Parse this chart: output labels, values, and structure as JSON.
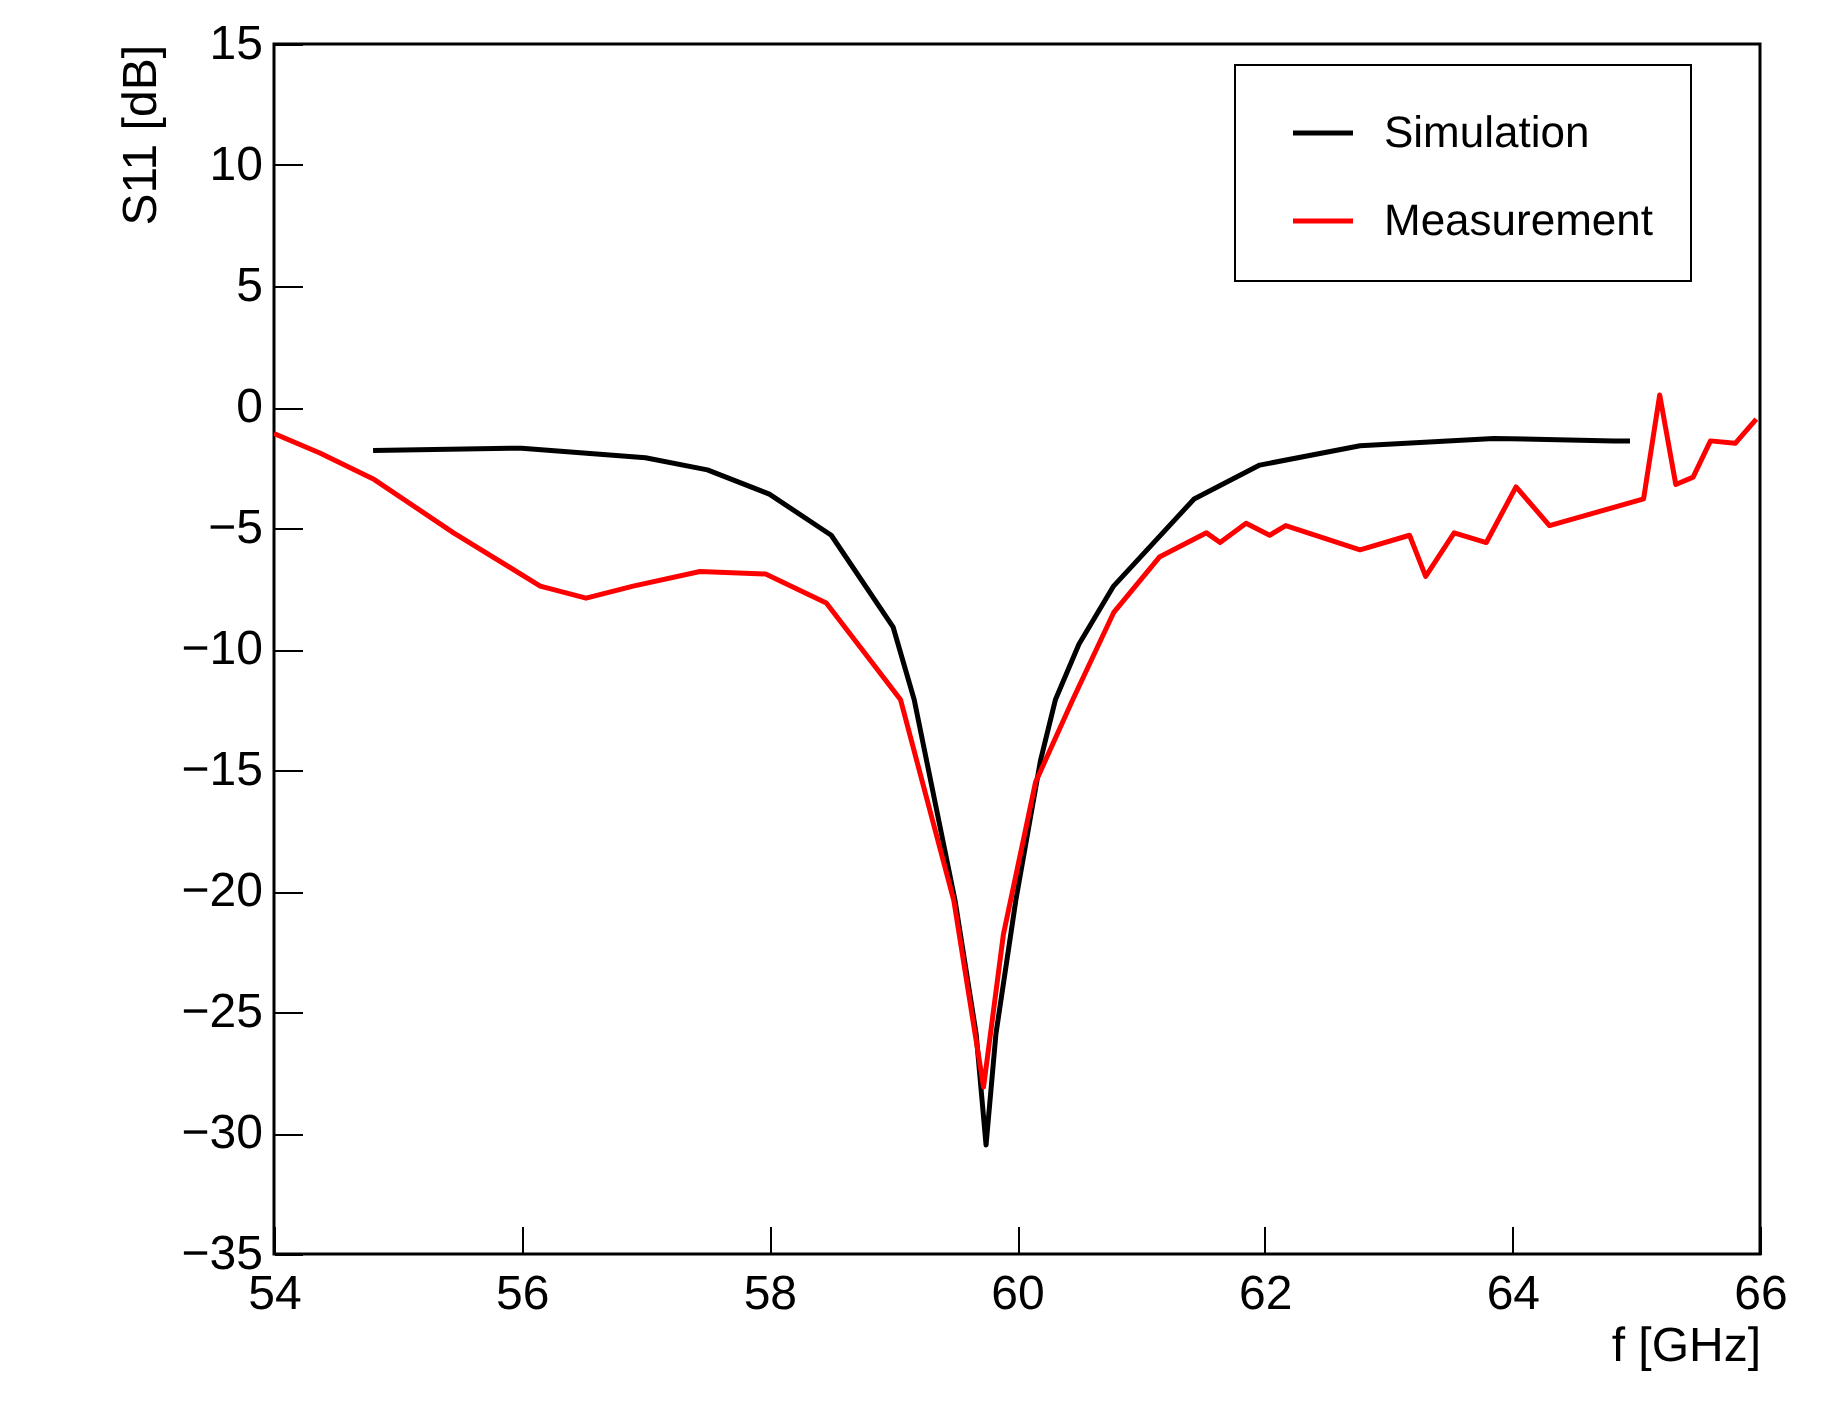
{
  "chart_data": {
    "type": "line",
    "xlabel": "f [GHz]",
    "ylabel": "S11 [dB]",
    "xlim": [
      54,
      66
    ],
    "xticks": [
      54,
      56,
      58,
      60,
      62,
      64,
      66
    ],
    "ylim": [
      -35,
      15
    ],
    "yticks": [
      -35,
      -30,
      -25,
      -20,
      -15,
      -10,
      -5,
      0,
      5,
      10,
      15
    ],
    "grid": false,
    "legend": "top right",
    "line_style": "solid",
    "marker": "none",
    "series": [
      {
        "name": "Simulation",
        "color": "#000000",
        "x": [
          54.8,
          56,
          57,
          57.5,
          58,
          58.5,
          59,
          59.17,
          59.5,
          59.67,
          59.75,
          59.83,
          59.99,
          60.19,
          60.31,
          60.5,
          60.78,
          61.43,
          61.96,
          62.77,
          63.85,
          64.82,
          64.95
        ],
        "values": [
          -1.8,
          -1.7,
          -2.1,
          -2.6,
          -3.6,
          -5.3,
          -9.1,
          -12.1,
          -20.4,
          -25.9,
          -30.5,
          -25.9,
          -20.4,
          -14.6,
          -12.1,
          -9.8,
          -7.4,
          -3.8,
          -2.4,
          -1.6,
          -1.3,
          -1.4,
          -1.4
        ]
      },
      {
        "name": "Measurement",
        "color": "#ff0000",
        "x": [
          54,
          54.37,
          54.81,
          55.45,
          56.15,
          56.52,
          56.9,
          57.44,
          57.97,
          58.46,
          58.73,
          59.06,
          59.49,
          59.73,
          59.89,
          60.15,
          60.45,
          60.78,
          61.15,
          61.53,
          61.64,
          61.85,
          62.04,
          62.17,
          62.77,
          63.17,
          63.3,
          63.53,
          63.79,
          64.03,
          64.3,
          65.06,
          65.19,
          65.32,
          65.46,
          65.6,
          65.8,
          65.97
        ],
        "values": [
          -1.1,
          -1.9,
          -3.0,
          -5.2,
          -7.4,
          -7.9,
          -7.4,
          -6.8,
          -6.9,
          -8.1,
          -9.9,
          -12.1,
          -20.4,
          -28.1,
          -21.8,
          -15.5,
          -12.1,
          -8.5,
          -6.2,
          -5.2,
          -5.6,
          -4.8,
          -5.3,
          -4.9,
          -5.9,
          -5.3,
          -7.0,
          -5.2,
          -5.6,
          -3.3,
          -4.9,
          -3.8,
          0.5,
          -3.2,
          -2.9,
          -1.4,
          -1.5,
          -0.5
        ]
      }
    ]
  }
}
